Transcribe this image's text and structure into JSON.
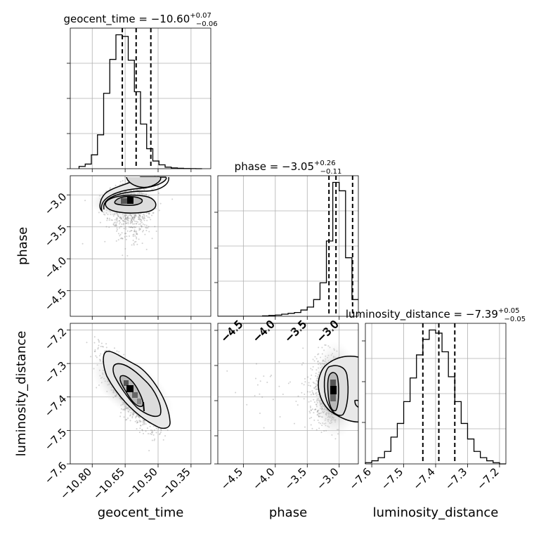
{
  "chart_data": [
    {
      "type": "histogram",
      "panel": "geocent_time-1d",
      "title_param": "geocent_time",
      "title_value": "−10.60",
      "title_plus": "+0.07",
      "title_minus": "−0.06",
      "xlim": [
        -10.9,
        -10.26
      ],
      "bins_x": [
        -10.86,
        -10.832,
        -10.804,
        -10.776,
        -10.748,
        -10.72,
        -10.692,
        -10.664,
        -10.636,
        -10.608,
        -10.58,
        -10.552,
        -10.524,
        -10.496,
        -10.468,
        -10.44,
        -10.412,
        -10.384,
        -10.356,
        -10.328,
        -10.3
      ],
      "counts": [
        0.3,
        0.6,
        1.8,
        4.4,
        9.8,
        14.2,
        17.4,
        17.2,
        14.1,
        10.0,
        5.8,
        2.6,
        1.0,
        0.5,
        0.2,
        0.1,
        0.05,
        0.02,
        0.01,
        0.0
      ],
      "quantiles": [
        -10.663,
        -10.6,
        -10.533
      ],
      "xticks": [
        -10.8,
        -10.65,
        -10.5,
        -10.35
      ]
    },
    {
      "type": "scatter-contour",
      "panel": "phase-vs-geocent_time",
      "xlim": [
        -10.9,
        -10.26
      ],
      "ylim": [
        -4.9,
        -2.7
      ],
      "xlabel": "",
      "ylabel": "phase",
      "yticks": [
        -3.0,
        -3.5,
        -4.0,
        -4.5
      ],
      "yticklabels": [
        "−3.0",
        "−3.5",
        "−4.0",
        "−4.5"
      ],
      "mode": [
        -10.63,
        -3.07
      ]
    },
    {
      "type": "histogram",
      "panel": "phase-1d",
      "title_param": "phase",
      "title_value": "−3.05",
      "title_plus": "+0.26",
      "title_minus": "−0.11",
      "xlim": [
        -4.9,
        -2.7
      ],
      "bins_x": [
        -4.9,
        -4.8,
        -4.7,
        -4.6,
        -4.5,
        -4.4,
        -4.3,
        -4.2,
        -4.1,
        -4.0,
        -3.9,
        -3.8,
        -3.7,
        -3.6,
        -3.5,
        -3.4,
        -3.3,
        -3.2,
        -3.1,
        -3.0,
        -2.9,
        -2.8,
        -2.7
      ],
      "counts": [
        0,
        0,
        0,
        0,
        0,
        0,
        0,
        0.1,
        0.2,
        0.3,
        0.5,
        0.7,
        0.9,
        1.5,
        2.2,
        4.0,
        8.0,
        18.0,
        32.0,
        30.0,
        14.0,
        4.0
      ],
      "quantiles": [
        -3.16,
        -3.05,
        -2.79
      ],
      "xticks": [
        -4.5,
        -4.0,
        -3.5,
        -3.0
      ],
      "xlabel": "phase",
      "xticklabels": [
        "−4.5",
        "−4.0",
        "−3.5",
        "−3.0"
      ]
    },
    {
      "type": "scatter-contour",
      "panel": "luminosity_distance-vs-geocent_time",
      "xlim": [
        -10.9,
        -10.26
      ],
      "ylim": [
        -7.6,
        -7.18
      ],
      "xlabel": "geocent_time",
      "ylabel": "luminosity_distance",
      "xticks": [
        -10.8,
        -10.65,
        -10.5,
        -10.35
      ],
      "xticklabels": [
        "−10.80",
        "−10.65",
        "−10.50",
        "−10.35"
      ],
      "yticks": [
        -7.2,
        -7.3,
        -7.4,
        -7.5,
        -7.6
      ],
      "yticklabels": [
        "−7.2",
        "−7.3",
        "−7.4",
        "−7.5",
        "−7.6"
      ],
      "mode": [
        -10.64,
        -7.38
      ]
    },
    {
      "type": "scatter-contour",
      "panel": "luminosity_distance-vs-phase",
      "xlim": [
        -4.9,
        -2.7
      ],
      "ylim": [
        -7.6,
        -7.18
      ],
      "mode": [
        -3.05,
        -7.38
      ]
    },
    {
      "type": "histogram",
      "panel": "luminosity_distance-1d",
      "title_param": "luminosity_distance",
      "title_value": "−7.39",
      "title_plus": "+0.05",
      "title_minus": "−0.05",
      "xlim": [
        -7.62,
        -7.18
      ],
      "bins_x": [
        -7.62,
        -7.6,
        -7.58,
        -7.56,
        -7.54,
        -7.52,
        -7.5,
        -7.48,
        -7.46,
        -7.44,
        -7.42,
        -7.4,
        -7.38,
        -7.36,
        -7.34,
        -7.32,
        -7.3,
        -7.28,
        -7.26,
        -7.24,
        -7.22,
        -7.2,
        -7.18
      ],
      "counts": [
        0.2,
        0.5,
        1.0,
        2.0,
        4.3,
        6.5,
        10.0,
        13.8,
        17.5,
        20.0,
        21.5,
        21.0,
        18.0,
        14.0,
        10.0,
        6.5,
        4.0,
        2.0,
        1.0,
        0.5,
        0.2,
        0.0
      ],
      "quantiles": [
        -7.44,
        -7.39,
        -7.34
      ],
      "xticks": [
        -7.6,
        -7.5,
        -7.4,
        -7.3,
        -7.2
      ],
      "xlabel": "luminosity_distance",
      "xticklabels": [
        "−7.6",
        "−7.5",
        "−7.4",
        "−7.3",
        "−7.2"
      ]
    }
  ]
}
